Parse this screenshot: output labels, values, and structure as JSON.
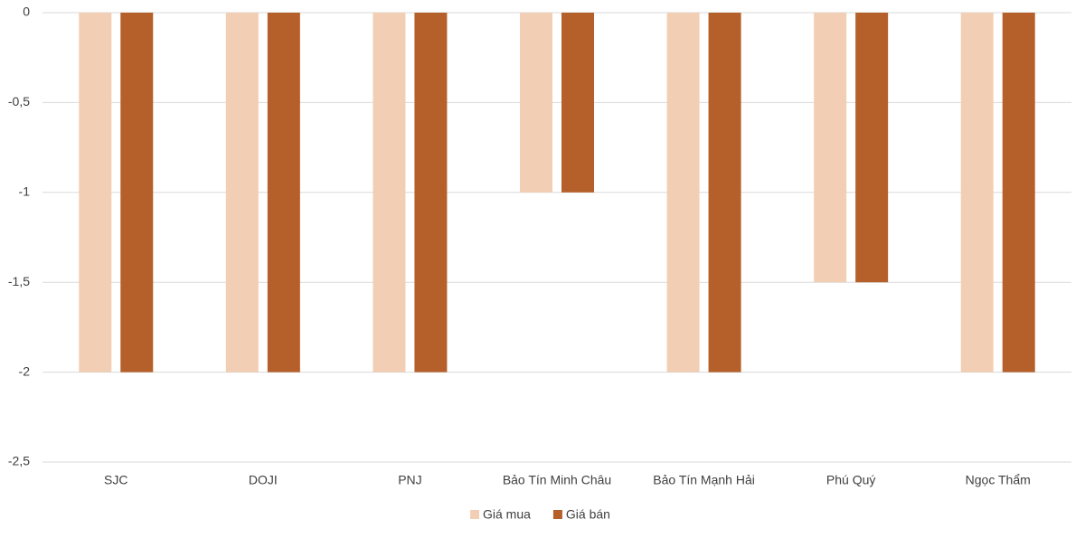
{
  "chart_data": {
    "type": "bar",
    "categories": [
      "SJC",
      "DOJI",
      "PNJ",
      "Bảo Tín Minh Châu",
      "Bảo Tín Mạnh Hải",
      "Phú Quý",
      "Ngọc Thẩm"
    ],
    "series": [
      {
        "name": "Giá mua",
        "color": "#f2cfb4",
        "values": [
          -2,
          -2,
          -2,
          -1,
          -2,
          -1.5,
          -2
        ]
      },
      {
        "name": "Giá bán",
        "color": "#b5602a",
        "values": [
          -2,
          -2,
          -2,
          -1,
          -2,
          -1.5,
          -2
        ]
      }
    ],
    "ylim": [
      -2.5,
      0
    ],
    "yticks": [
      0,
      {
        "value": -0.5,
        "label": "-0,5"
      },
      -1,
      {
        "value": -1.5,
        "label": "-1,5"
      },
      -2,
      {
        "value": -2.5,
        "label": "-2,5"
      }
    ],
    "grid": true,
    "legend": "bottom"
  }
}
